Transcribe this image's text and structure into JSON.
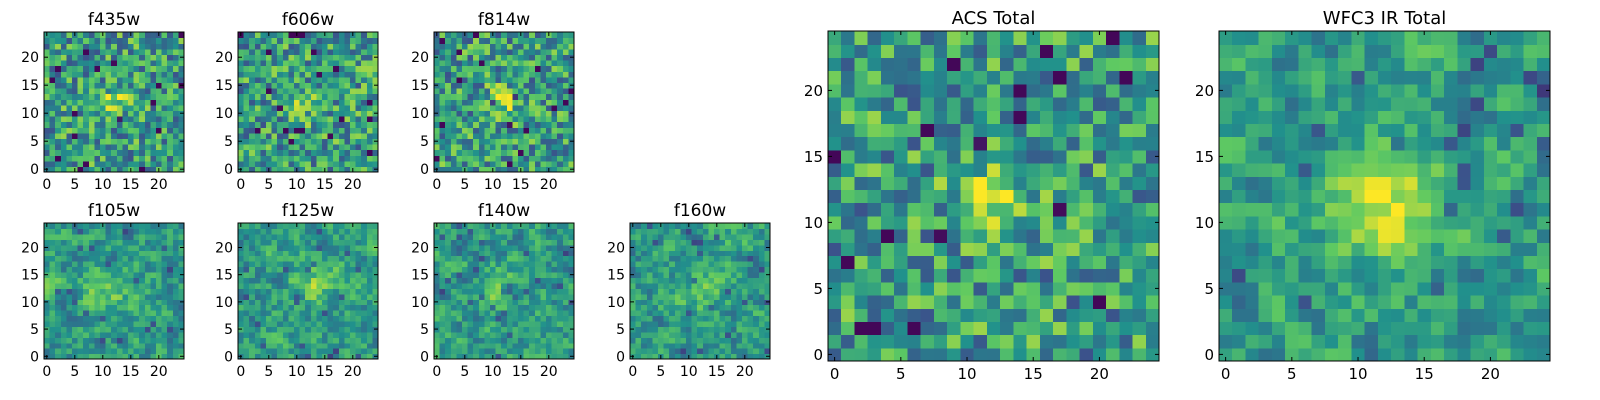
{
  "chart_data": {
    "type": "heatmap",
    "colormap": "viridis",
    "colormap_stops": [
      "#440154",
      "#3b528b",
      "#21918c",
      "#5ec962",
      "#fde725"
    ],
    "grid": false,
    "panels": [
      {
        "key": "f435w",
        "title": "f435w",
        "size": "small",
        "xlim": [
          0,
          24
        ],
        "ylim": [
          0,
          24
        ],
        "xticks": [
          0,
          5,
          10,
          15,
          20
        ],
        "yticks": [
          0,
          5,
          10,
          15,
          20
        ],
        "dims": [
          25,
          25
        ],
        "hotspot": {
          "x": 12,
          "y": 12,
          "r": 2
        },
        "contrast": 0.22,
        "smooth": 0
      },
      {
        "key": "f606w",
        "title": "f606w",
        "size": "small",
        "xlim": [
          0,
          24
        ],
        "ylim": [
          0,
          24
        ],
        "xticks": [
          0,
          5,
          10,
          15,
          20
        ],
        "yticks": [
          0,
          5,
          10,
          15,
          20
        ],
        "dims": [
          25,
          25
        ],
        "hotspot": {
          "x": 12,
          "y": 12,
          "r": 2
        },
        "contrast": 0.2,
        "smooth": 0
      },
      {
        "key": "f814w",
        "title": "f814w",
        "size": "small",
        "xlim": [
          0,
          24
        ],
        "ylim": [
          0,
          24
        ],
        "xticks": [
          0,
          5,
          10,
          15,
          20
        ],
        "yticks": [
          0,
          5,
          10,
          15,
          20
        ],
        "dims": [
          25,
          25
        ],
        "hotspot": {
          "x": 12,
          "y": 12,
          "r": 2
        },
        "contrast": 0.28,
        "smooth": 0
      },
      {
        "key": "f105w",
        "title": "f105w",
        "size": "small",
        "xlim": [
          0,
          24
        ],
        "ylim": [
          0,
          24
        ],
        "xticks": [
          0,
          5,
          10,
          15,
          20
        ],
        "yticks": [
          0,
          5,
          10,
          15,
          20
        ],
        "dims": [
          25,
          25
        ],
        "hotspot": {
          "x": 11,
          "y": 12,
          "r": 3
        },
        "contrast": 0.2,
        "smooth": 1
      },
      {
        "key": "f125w",
        "title": "f125w",
        "size": "small",
        "xlim": [
          0,
          24
        ],
        "ylim": [
          0,
          24
        ],
        "xticks": [
          0,
          5,
          10,
          15,
          20
        ],
        "yticks": [
          0,
          5,
          10,
          15,
          20
        ],
        "dims": [
          25,
          25
        ],
        "hotspot": {
          "x": 13,
          "y": 14,
          "r": 3
        },
        "contrast": 0.2,
        "smooth": 1
      },
      {
        "key": "f140w",
        "title": "f140w",
        "size": "small",
        "xlim": [
          0,
          24
        ],
        "ylim": [
          0,
          24
        ],
        "xticks": [
          0,
          5,
          10,
          15,
          20
        ],
        "yticks": [
          0,
          5,
          10,
          15,
          20
        ],
        "dims": [
          25,
          25
        ],
        "hotspot": {
          "x": 12,
          "y": 12,
          "r": 3
        },
        "contrast": 0.2,
        "smooth": 1
      },
      {
        "key": "f160w",
        "title": "f160w",
        "size": "small",
        "xlim": [
          0,
          24
        ],
        "ylim": [
          0,
          24
        ],
        "xticks": [
          0,
          5,
          10,
          15,
          20
        ],
        "yticks": [
          0,
          5,
          10,
          15,
          20
        ],
        "dims": [
          25,
          25
        ],
        "hotspot": {
          "x": 12,
          "y": 12,
          "r": 3
        },
        "contrast": 0.15,
        "smooth": 1
      },
      {
        "key": "acs_total",
        "title": "ACS Total",
        "size": "large",
        "xlim": [
          0,
          24
        ],
        "ylim": [
          0,
          24
        ],
        "xticks": [
          0,
          5,
          10,
          15,
          20
        ],
        "yticks": [
          0,
          5,
          10,
          15,
          20
        ],
        "dims": [
          25,
          25
        ],
        "hotspot": {
          "x": 12,
          "y": 12,
          "r": 2
        },
        "contrast": 0.35,
        "smooth": 0
      },
      {
        "key": "wfc3_ir_total",
        "title": "WFC3 IR Total",
        "size": "large",
        "xlim": [
          0,
          24
        ],
        "ylim": [
          0,
          24
        ],
        "xticks": [
          0,
          5,
          10,
          15,
          20
        ],
        "yticks": [
          0,
          5,
          10,
          15,
          20
        ],
        "dims": [
          25,
          25
        ],
        "hotspot": {
          "x": 12,
          "y": 12,
          "r": 3
        },
        "contrast": 0.35,
        "smooth": 1
      }
    ]
  }
}
